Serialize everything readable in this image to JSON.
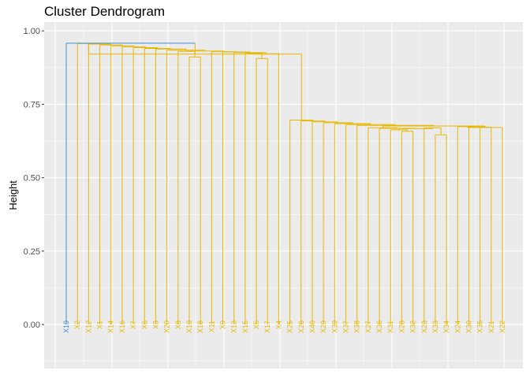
{
  "chart_data": {
    "type": "dendrogram",
    "title": "Cluster Dendrogram",
    "xlabel": "",
    "ylabel": "Height",
    "ylim": [
      -0.15,
      1.03
    ],
    "y_ticks": [
      "0.00",
      "0.25",
      "0.50",
      "0.75",
      "1.00"
    ],
    "grid": true,
    "colors": {
      "panel_bg": "#ebebeb",
      "grid_major": "#ffffff",
      "cluster_1": "#3d8fd6",
      "cluster_2": "#e7b800",
      "tick_text": "#4d4d4d"
    },
    "leaves": [
      {
        "label": "X19",
        "cluster": 1
      },
      {
        "label": "X2",
        "cluster": 2
      },
      {
        "label": "X12",
        "cluster": 2
      },
      {
        "label": "X1",
        "cluster": 2
      },
      {
        "label": "X14",
        "cluster": 2
      },
      {
        "label": "X16",
        "cluster": 2
      },
      {
        "label": "X7",
        "cluster": 2
      },
      {
        "label": "X6",
        "cluster": 2
      },
      {
        "label": "X3",
        "cluster": 2
      },
      {
        "label": "X20",
        "cluster": 2
      },
      {
        "label": "X8",
        "cluster": 2
      },
      {
        "label": "X10",
        "cluster": 2
      },
      {
        "label": "X18",
        "cluster": 2
      },
      {
        "label": "X11",
        "cluster": 2
      },
      {
        "label": "X9",
        "cluster": 2
      },
      {
        "label": "X13",
        "cluster": 2
      },
      {
        "label": "X15",
        "cluster": 2
      },
      {
        "label": "X5",
        "cluster": 2
      },
      {
        "label": "X17",
        "cluster": 2
      },
      {
        "label": "X4",
        "cluster": 2
      },
      {
        "label": "X25",
        "cluster": 2
      },
      {
        "label": "X26",
        "cluster": 2
      },
      {
        "label": "X40",
        "cluster": 2
      },
      {
        "label": "X29",
        "cluster": 2
      },
      {
        "label": "X39",
        "cluster": 2
      },
      {
        "label": "X37",
        "cluster": 2
      },
      {
        "label": "X38",
        "cluster": 2
      },
      {
        "label": "X27",
        "cluster": 2
      },
      {
        "label": "X36",
        "cluster": 2
      },
      {
        "label": "X31",
        "cluster": 2
      },
      {
        "label": "X28",
        "cluster": 2
      },
      {
        "label": "X32",
        "cluster": 2
      },
      {
        "label": "X23",
        "cluster": 2
      },
      {
        "label": "X33",
        "cluster": 2
      },
      {
        "label": "X34",
        "cluster": 2
      },
      {
        "label": "X24",
        "cluster": 2
      },
      {
        "label": "X30",
        "cluster": 2
      },
      {
        "label": "X35",
        "cluster": 2
      },
      {
        "label": "X21",
        "cluster": 2
      },
      {
        "label": "X22",
        "cluster": 2
      }
    ],
    "merges": [
      {
        "a": "X10",
        "b": "X18",
        "height": 0.911
      },
      {
        "a": "X5",
        "b": "X17",
        "height": 0.906
      },
      {
        "a": "X8",
        "b": [
          "X10",
          "X18"
        ],
        "height": 0.93
      },
      {
        "a": "X15",
        "b": [
          "X5",
          "X17"
        ],
        "height": 0.924
      },
      {
        "a": "X28",
        "b": "X32",
        "height": 0.66
      },
      {
        "a": "X33",
        "b": "X34",
        "height": 0.646
      },
      {
        "a": "X31",
        "b": [
          "X28",
          "X32"
        ],
        "height": 0.664
      },
      {
        "a": "X35",
        "b": "X21",
        "height": 0.672
      },
      {
        "a": "X30",
        "b": [
          "X35",
          "X21"
        ],
        "height": 0.674
      },
      {
        "a": "X24",
        "b": [
          "X30",
          "X35",
          "X21"
        ],
        "height": 0.675
      },
      {
        "a": "X23",
        "b": [
          "X33",
          "X34"
        ],
        "height": 0.67
      },
      {
        "a": "X19",
        "b": "rest",
        "height": 0.96
      },
      {
        "a": "cluster_A",
        "b": "cluster_B",
        "height": 0.921
      },
      {
        "a": "X25",
        "b": "X26",
        "height": 0.696
      }
    ]
  }
}
